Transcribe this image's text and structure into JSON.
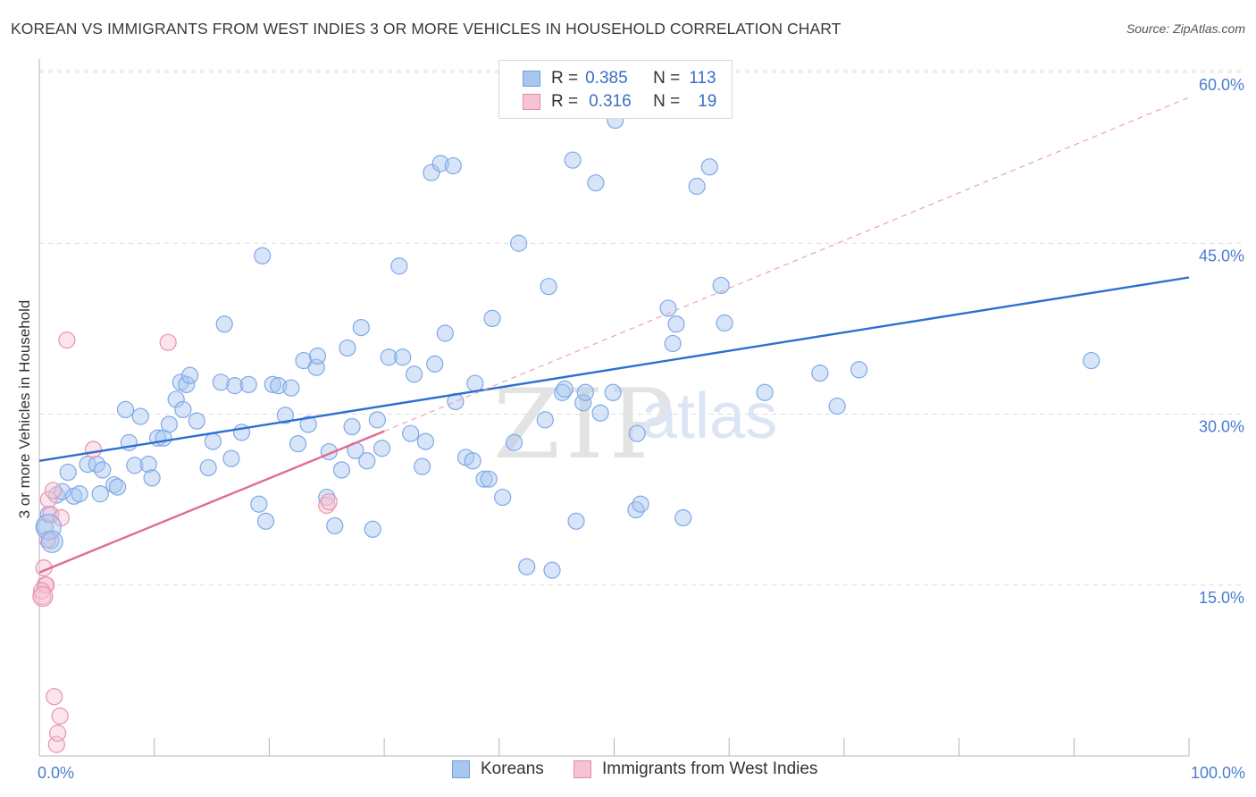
{
  "title": "KOREAN VS IMMIGRANTS FROM WEST INDIES 3 OR MORE VEHICLES IN HOUSEHOLD CORRELATION CHART",
  "source": "Source: ZipAtlas.com",
  "watermark": {
    "zip": "ZIP",
    "atlas": "atlas"
  },
  "legend": {
    "rows": [
      {
        "r_label": "R =",
        "r_value": "0.385",
        "n_label": "N =",
        "n_value": "113",
        "color": "#a9c6ef",
        "border": "#6f9fdf"
      },
      {
        "r_label": "R =",
        "r_value": "0.316",
        "n_label": "N =",
        "n_value": "19",
        "color": "#f7c3d2",
        "border": "#e58aa6"
      }
    ]
  },
  "bottom_legend": [
    {
      "label": "Koreans",
      "color": "#a9c6ef",
      "border": "#6f9fdf"
    },
    {
      "label": "Immigrants from West Indies",
      "color": "#f7c3d2",
      "border": "#e58aa6"
    }
  ],
  "chart_data": {
    "type": "scatter",
    "title": "KOREAN VS IMMIGRANTS FROM WEST INDIES 3 OR MORE VEHICLES IN HOUSEHOLD CORRELATION CHART",
    "xlabel": "",
    "ylabel": "3 or more Vehicles in Household",
    "xlim": [
      0,
      100
    ],
    "ylim": [
      0,
      62
    ],
    "x_tick_labels": {
      "left": "0.0%",
      "right": "100.0%"
    },
    "y_ticks": [
      {
        "value": 15,
        "label": "15.0%"
      },
      {
        "value": 30,
        "label": "30.0%"
      },
      {
        "value": 45,
        "label": "45.0%"
      },
      {
        "value": 60,
        "label": "60.0%"
      }
    ],
    "grid": true,
    "legend_position": "top-center",
    "series": [
      {
        "name": "Koreans",
        "color": "#7ea9e8",
        "fill": "rgba(169,198,239,0.45)",
        "trend": {
          "x": [
            0,
            100
          ],
          "y": [
            25.9,
            42.0
          ],
          "color": "#2f6fd0",
          "style": "solid"
        },
        "points": [
          [
            0.5,
            20.1
          ],
          [
            0.8,
            21.2
          ],
          [
            1.0,
            18.9
          ],
          [
            1.5,
            22.9
          ],
          [
            2.0,
            23.2
          ],
          [
            2.5,
            24.9
          ],
          [
            3.0,
            22.8
          ],
          [
            3.5,
            23.0
          ],
          [
            4.2,
            25.6
          ],
          [
            5.0,
            25.6
          ],
          [
            5.5,
            25.1
          ],
          [
            5.3,
            23.0
          ],
          [
            6.5,
            23.8
          ],
          [
            6.8,
            23.6
          ],
          [
            7.5,
            30.4
          ],
          [
            7.8,
            27.5
          ],
          [
            8.3,
            25.5
          ],
          [
            8.8,
            29.8
          ],
          [
            9.5,
            25.6
          ],
          [
            9.8,
            24.4
          ],
          [
            10.3,
            27.9
          ],
          [
            10.8,
            27.9
          ],
          [
            11.3,
            29.1
          ],
          [
            11.9,
            31.3
          ],
          [
            12.3,
            32.8
          ],
          [
            12.5,
            30.4
          ],
          [
            12.8,
            32.6
          ],
          [
            13.1,
            33.4
          ],
          [
            13.7,
            29.4
          ],
          [
            14.7,
            25.3
          ],
          [
            15.1,
            27.6
          ],
          [
            15.8,
            32.8
          ],
          [
            16.1,
            37.9
          ],
          [
            16.7,
            26.1
          ],
          [
            17.0,
            32.5
          ],
          [
            17.6,
            28.4
          ],
          [
            18.2,
            32.6
          ],
          [
            19.1,
            22.1
          ],
          [
            19.4,
            43.9
          ],
          [
            19.7,
            20.6
          ],
          [
            20.3,
            32.6
          ],
          [
            20.8,
            32.5
          ],
          [
            21.4,
            29.9
          ],
          [
            21.9,
            32.3
          ],
          [
            22.5,
            27.4
          ],
          [
            23.0,
            34.7
          ],
          [
            23.4,
            29.1
          ],
          [
            24.1,
            34.1
          ],
          [
            24.2,
            35.1
          ],
          [
            25.0,
            22.7
          ],
          [
            25.2,
            26.7
          ],
          [
            25.7,
            20.2
          ],
          [
            26.3,
            25.1
          ],
          [
            26.8,
            35.8
          ],
          [
            27.2,
            28.9
          ],
          [
            27.5,
            26.8
          ],
          [
            28.0,
            37.6
          ],
          [
            28.5,
            25.9
          ],
          [
            29.0,
            19.9
          ],
          [
            29.4,
            29.5
          ],
          [
            29.8,
            27.0
          ],
          [
            30.4,
            35.0
          ],
          [
            31.3,
            43.0
          ],
          [
            31.6,
            35.0
          ],
          [
            32.3,
            28.3
          ],
          [
            32.6,
            33.5
          ],
          [
            33.3,
            25.4
          ],
          [
            33.6,
            27.6
          ],
          [
            34.1,
            51.2
          ],
          [
            34.4,
            34.4
          ],
          [
            34.9,
            52.0
          ],
          [
            35.3,
            37.1
          ],
          [
            36.0,
            51.8
          ],
          [
            36.2,
            31.1
          ],
          [
            37.1,
            26.2
          ],
          [
            37.9,
            32.7
          ],
          [
            37.7,
            25.9
          ],
          [
            38.7,
            24.3
          ],
          [
            39.1,
            24.3
          ],
          [
            39.4,
            38.4
          ],
          [
            40.3,
            22.7
          ],
          [
            41.3,
            27.5
          ],
          [
            41.7,
            45.0
          ],
          [
            42.4,
            16.6
          ],
          [
            44.0,
            29.5
          ],
          [
            44.3,
            41.2
          ],
          [
            44.6,
            16.3
          ],
          [
            45.5,
            31.9
          ],
          [
            45.7,
            32.2
          ],
          [
            46.4,
            52.3
          ],
          [
            46.7,
            20.6
          ],
          [
            47.3,
            31.0
          ],
          [
            47.5,
            31.9
          ],
          [
            48.4,
            50.3
          ],
          [
            48.8,
            30.1
          ],
          [
            49.9,
            31.9
          ],
          [
            50.1,
            55.8
          ],
          [
            51.9,
            21.6
          ],
          [
            52.0,
            28.3
          ],
          [
            52.3,
            22.1
          ],
          [
            54.7,
            39.3
          ],
          [
            55.1,
            36.2
          ],
          [
            55.4,
            37.9
          ],
          [
            56.0,
            20.9
          ],
          [
            57.2,
            50.0
          ],
          [
            58.3,
            51.7
          ],
          [
            59.3,
            41.3
          ],
          [
            59.6,
            38.0
          ],
          [
            63.1,
            31.9
          ],
          [
            67.9,
            33.6
          ],
          [
            69.4,
            30.7
          ],
          [
            71.3,
            33.9
          ],
          [
            91.5,
            34.7
          ]
        ]
      },
      {
        "name": "Immigrants from West Indies",
        "color": "#e992ad",
        "fill": "rgba(247,195,210,0.45)",
        "trend": {
          "x": [
            0,
            30
          ],
          "y": [
            16.1,
            28.5
          ],
          "color": "#e06b93",
          "style": "solid"
        },
        "trend_extension": {
          "x": [
            30,
            100
          ],
          "y": [
            28.5,
            57.8
          ],
          "color": "#e7a3b9",
          "style": "dashed"
        },
        "points": [
          [
            0.3,
            14.0
          ],
          [
            0.4,
            16.5
          ],
          [
            0.5,
            15.0
          ],
          [
            0.6,
            15.0
          ],
          [
            0.7,
            19.0
          ],
          [
            0.8,
            22.5
          ],
          [
            1.0,
            21.2
          ],
          [
            1.2,
            23.3
          ],
          [
            1.3,
            5.2
          ],
          [
            1.5,
            1.0
          ],
          [
            1.6,
            2.0
          ],
          [
            1.8,
            3.5
          ],
          [
            1.9,
            20.9
          ],
          [
            2.4,
            36.5
          ],
          [
            4.7,
            26.9
          ],
          [
            11.2,
            36.3
          ],
          [
            25.0,
            22.0
          ],
          [
            25.2,
            22.3
          ],
          [
            0.2,
            14.5
          ]
        ]
      }
    ]
  }
}
